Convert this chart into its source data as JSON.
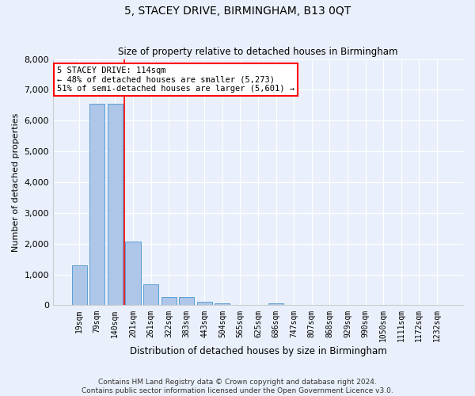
{
  "title": "5, STACEY DRIVE, BIRMINGHAM, B13 0QT",
  "subtitle": "Size of property relative to detached houses in Birmingham",
  "xlabel": "Distribution of detached houses by size in Birmingham",
  "ylabel": "Number of detached properties",
  "footer_line1": "Contains HM Land Registry data © Crown copyright and database right 2024.",
  "footer_line2": "Contains public sector information licensed under the Open Government Licence v3.0.",
  "bin_labels": [
    "19sqm",
    "79sqm",
    "140sqm",
    "201sqm",
    "261sqm",
    "322sqm",
    "383sqm",
    "443sqm",
    "504sqm",
    "565sqm",
    "625sqm",
    "686sqm",
    "747sqm",
    "807sqm",
    "868sqm",
    "929sqm",
    "990sqm",
    "1050sqm",
    "1111sqm",
    "1172sqm",
    "1232sqm"
  ],
  "bar_values": [
    1300,
    6550,
    6550,
    2080,
    680,
    280,
    280,
    110,
    60,
    0,
    0,
    60,
    0,
    0,
    0,
    0,
    0,
    0,
    0,
    0,
    0
  ],
  "bar_color": "#aec6e8",
  "bar_edge_color": "#5a9fd4",
  "bg_color": "#eaf0fb",
  "grid_color": "#ffffff",
  "vline_x": 2.5,
  "vline_color": "red",
  "annotation_text": "5 STACEY DRIVE: 114sqm\n← 48% of detached houses are smaller (5,273)\n51% of semi-detached houses are larger (5,601) →",
  "annotation_box_color": "white",
  "annotation_box_edge": "red",
  "ylim": [
    0,
    8000
  ],
  "yticks": [
    0,
    1000,
    2000,
    3000,
    4000,
    5000,
    6000,
    7000,
    8000
  ],
  "title_fontsize": 10,
  "subtitle_fontsize": 8.5,
  "xlabel_fontsize": 8.5,
  "ylabel_fontsize": 8,
  "tick_fontsize": 8,
  "xtick_fontsize": 7,
  "annotation_fontsize": 7.5,
  "footer_fontsize": 6.5
}
